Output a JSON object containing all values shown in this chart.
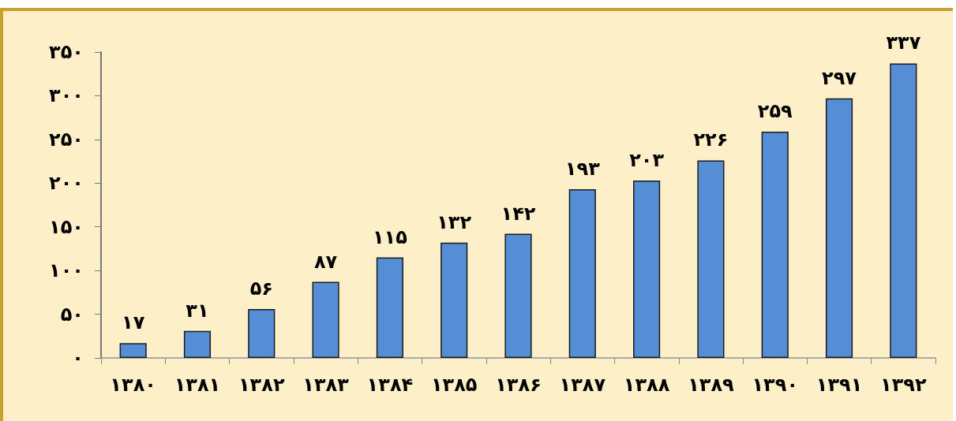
{
  "chart_data": {
    "type": "bar",
    "categories": [
      "۱۳۸۰",
      "۱۳۸۱",
      "۱۳۸۲",
      "۱۳۸۳",
      "۱۳۸۴",
      "۱۳۸۵",
      "۱۳۸۶",
      "۱۳۸۷",
      "۱۳۸۸",
      "۱۳۸۹",
      "۱۳۹۰",
      "۱۳۹۱",
      "۱۳۹۲"
    ],
    "values": [
      17,
      31,
      56,
      87,
      115,
      132,
      142,
      193,
      203,
      226,
      259,
      297,
      337
    ],
    "value_labels": [
      "۱۷",
      "۳۱",
      "۵۶",
      "۸۷",
      "۱۱۵",
      "۱۳۲",
      "۱۴۲",
      "۱۹۳",
      "۲۰۳",
      "۲۲۶",
      "۲۵۹",
      "۲۹۷",
      "۳۳۷"
    ],
    "color": "#558ed5",
    "ylim": [
      0,
      350
    ],
    "yticks": [
      {
        "value": 0,
        "label": "۰"
      },
      {
        "value": 50,
        "label": "۵۰"
      },
      {
        "value": 100,
        "label": "۱۰۰"
      },
      {
        "value": 150,
        "label": "۱۵۰"
      },
      {
        "value": 200,
        "label": "۲۰۰"
      },
      {
        "value": 250,
        "label": "۲۵۰"
      },
      {
        "value": 300,
        "label": "۳۰۰"
      },
      {
        "value": 350,
        "label": "۳۵۰"
      }
    ],
    "grid": false
  }
}
